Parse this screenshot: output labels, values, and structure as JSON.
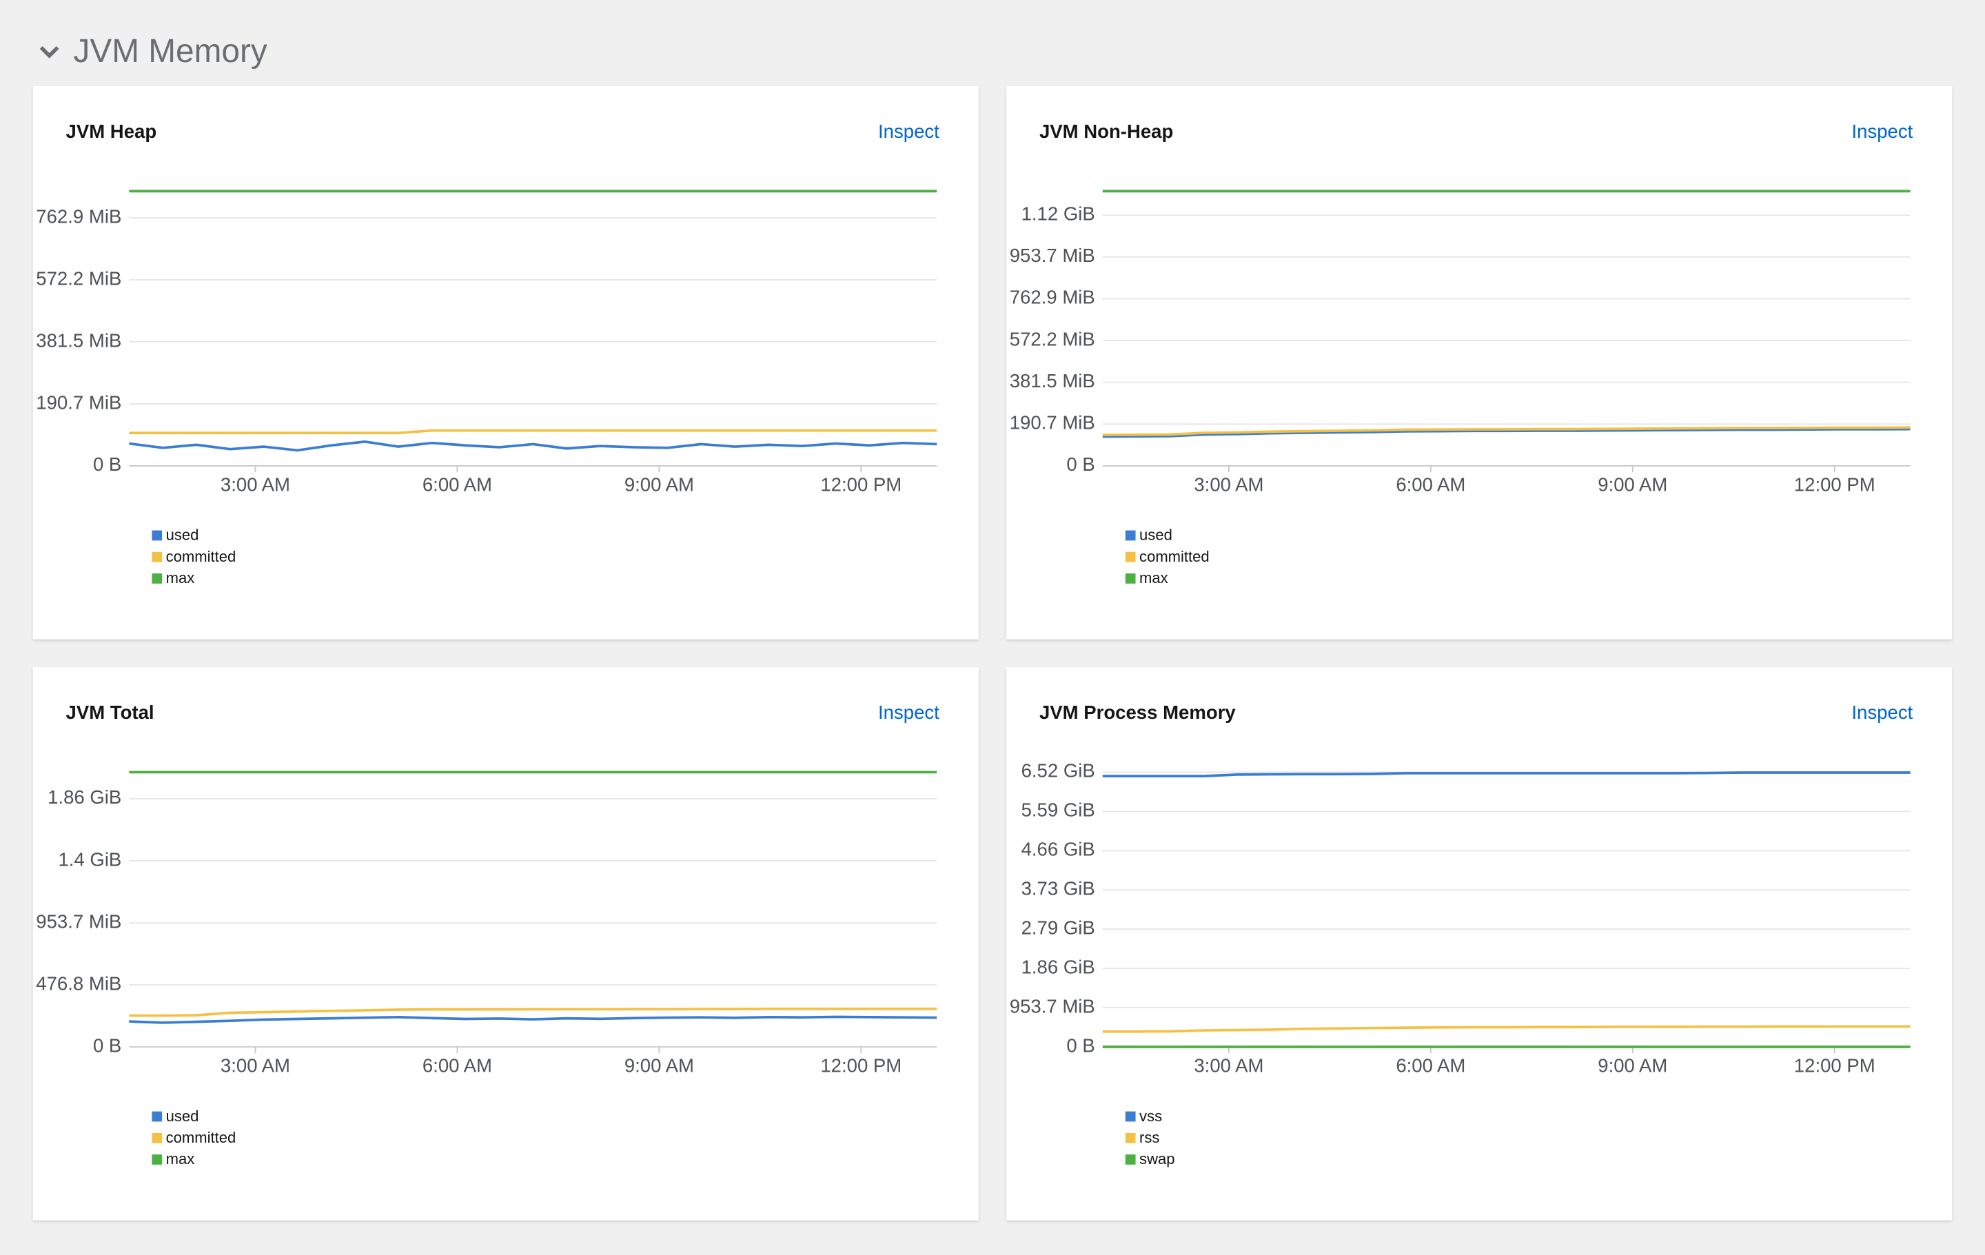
{
  "section_title": "JVM Memory",
  "chart_data": [
    {
      "type": "line",
      "title": "JVM Heap",
      "action": "Inspect",
      "grid": true,
      "legend": "bottom-left",
      "x": [
        1.125,
        1.625,
        2.125,
        2.625,
        3.125,
        3.625,
        4.125,
        4.625,
        5.125,
        5.625,
        6.125,
        6.625,
        7.125,
        7.625,
        8.125,
        8.625,
        9.125,
        9.625,
        10.125,
        10.625,
        11.125,
        11.625,
        12.125,
        12.625,
        13.125
      ],
      "xlim": [
        1.125,
        13.125
      ],
      "xticks": [
        {
          "value": 3,
          "label": "3:00 AM"
        },
        {
          "value": 6,
          "label": "6:00 AM"
        },
        {
          "value": 9,
          "label": "9:00 AM"
        },
        {
          "value": 12,
          "label": "12:00 PM"
        }
      ],
      "ylim": [
        0,
        886000000
      ],
      "yticks": [
        {
          "value": 0,
          "label": "0 B"
        },
        {
          "value": 200000000,
          "label": "190.7 MiB"
        },
        {
          "value": 400000000,
          "label": "381.5 MiB"
        },
        {
          "value": 600000000,
          "label": "572.2 MiB"
        },
        {
          "value": 800000000,
          "label": "762.9 MiB"
        }
      ],
      "series": [
        {
          "name": "used",
          "color": "#3b7dd1",
          "values": [
            72000000,
            58000000,
            68000000,
            54000000,
            62000000,
            50000000,
            66000000,
            78000000,
            62000000,
            74000000,
            66000000,
            60000000,
            70000000,
            56000000,
            64000000,
            60000000,
            58000000,
            70000000,
            62000000,
            68000000,
            64000000,
            72000000,
            66000000,
            74000000,
            70000000
          ]
        },
        {
          "name": "committed",
          "color": "#f4c145",
          "values": [
            106000000,
            106000000,
            106000000,
            106000000,
            106000000,
            106000000,
            106000000,
            106000000,
            106000000,
            114000000,
            114000000,
            114000000,
            114000000,
            114000000,
            114000000,
            114000000,
            114000000,
            114000000,
            114000000,
            114000000,
            114000000,
            114000000,
            114000000,
            114000000,
            114000000
          ]
        },
        {
          "name": "max",
          "color": "#4cb140",
          "values": [
            886000000,
            886000000,
            886000000,
            886000000,
            886000000,
            886000000,
            886000000,
            886000000,
            886000000,
            886000000,
            886000000,
            886000000,
            886000000,
            886000000,
            886000000,
            886000000,
            886000000,
            886000000,
            886000000,
            886000000,
            886000000,
            886000000,
            886000000,
            886000000,
            886000000
          ]
        }
      ]
    },
    {
      "type": "line",
      "title": "JVM Non-Heap",
      "action": "Inspect",
      "grid": true,
      "legend": "bottom-left",
      "x": [
        1.125,
        1.625,
        2.125,
        2.625,
        3.125,
        3.625,
        4.125,
        4.625,
        5.125,
        5.625,
        6.125,
        6.625,
        7.125,
        7.625,
        8.125,
        8.625,
        9.125,
        9.625,
        10.125,
        10.625,
        11.125,
        11.625,
        12.125,
        12.625,
        13.125
      ],
      "xlim": [
        1.125,
        13.125
      ],
      "xticks": [
        {
          "value": 3,
          "label": "3:00 AM"
        },
        {
          "value": 6,
          "label": "6:00 AM"
        },
        {
          "value": 9,
          "label": "9:00 AM"
        },
        {
          "value": 12,
          "label": "12:00 PM"
        }
      ],
      "ylim": [
        0,
        1315000000
      ],
      "yticks": [
        {
          "value": 0,
          "label": "0 B"
        },
        {
          "value": 200000000,
          "label": "190.7 MiB"
        },
        {
          "value": 400000000,
          "label": "381.5 MiB"
        },
        {
          "value": 600000000,
          "label": "572.2 MiB"
        },
        {
          "value": 800000000,
          "label": "762.9 MiB"
        },
        {
          "value": 1000000000,
          "label": "953.7 MiB"
        },
        {
          "value": 1200000000,
          "label": "1.12 GiB"
        }
      ],
      "series": [
        {
          "name": "used",
          "color": "#3b7dd1",
          "values": [
            140000000,
            141000000,
            142000000,
            150000000,
            152000000,
            156000000,
            158000000,
            160000000,
            162000000,
            165000000,
            166000000,
            167000000,
            167000000,
            168000000,
            168000000,
            169000000,
            170000000,
            171000000,
            172000000,
            173000000,
            173000000,
            174000000,
            175000000,
            175000000,
            176000000
          ]
        },
        {
          "name": "committed",
          "color": "#f4c145",
          "values": [
            148000000,
            149000000,
            150000000,
            158000000,
            160000000,
            164000000,
            166000000,
            168000000,
            170000000,
            173000000,
            174000000,
            175000000,
            175000000,
            176000000,
            176000000,
            177000000,
            178000000,
            179000000,
            180000000,
            181000000,
            181000000,
            182000000,
            183000000,
            183000000,
            184000000
          ]
        },
        {
          "name": "max",
          "color": "#4cb140",
          "values": [
            1315000000,
            1315000000,
            1315000000,
            1315000000,
            1315000000,
            1315000000,
            1315000000,
            1315000000,
            1315000000,
            1315000000,
            1315000000,
            1315000000,
            1315000000,
            1315000000,
            1315000000,
            1315000000,
            1315000000,
            1315000000,
            1315000000,
            1315000000,
            1315000000,
            1315000000,
            1315000000,
            1315000000,
            1315000000
          ]
        }
      ]
    },
    {
      "type": "line",
      "title": "JVM Total",
      "action": "Inspect",
      "grid": true,
      "legend": "bottom-left",
      "x": [
        1.125,
        1.625,
        2.125,
        2.625,
        3.125,
        3.625,
        4.125,
        4.625,
        5.125,
        5.625,
        6.125,
        6.625,
        7.125,
        7.625,
        8.125,
        8.625,
        9.125,
        9.625,
        10.125,
        10.625,
        11.125,
        11.625,
        12.125,
        12.625,
        13.125
      ],
      "xlim": [
        1.125,
        13.125
      ],
      "xticks": [
        {
          "value": 3,
          "label": "3:00 AM"
        },
        {
          "value": 6,
          "label": "6:00 AM"
        },
        {
          "value": 9,
          "label": "9:00 AM"
        },
        {
          "value": 12,
          "label": "12:00 PM"
        }
      ],
      "ylim": [
        0,
        2214000000
      ],
      "yticks": [
        {
          "value": 0,
          "label": "0 B"
        },
        {
          "value": 500000000,
          "label": "476.8 MiB"
        },
        {
          "value": 1000000000,
          "label": "953.7 MiB"
        },
        {
          "value": 1500000000,
          "label": "1.4 GiB"
        },
        {
          "value": 2000000000,
          "label": "1.86 GiB"
        }
      ],
      "series": [
        {
          "name": "used",
          "color": "#3b7dd1",
          "values": [
            205000000,
            195000000,
            202000000,
            210000000,
            220000000,
            225000000,
            230000000,
            235000000,
            240000000,
            232000000,
            225000000,
            228000000,
            222000000,
            230000000,
            226000000,
            232000000,
            236000000,
            238000000,
            234000000,
            240000000,
            238000000,
            242000000,
            240000000,
            238000000,
            236000000
          ]
        },
        {
          "name": "committed",
          "color": "#f4c145",
          "values": [
            252000000,
            252000000,
            255000000,
            275000000,
            280000000,
            285000000,
            290000000,
            295000000,
            300000000,
            302000000,
            302000000,
            302000000,
            303000000,
            303000000,
            303000000,
            304000000,
            304000000,
            305000000,
            305000000,
            306000000,
            306000000,
            306000000,
            306000000,
            306000000,
            306000000
          ]
        },
        {
          "name": "max",
          "color": "#4cb140",
          "values": [
            2214000000,
            2214000000,
            2214000000,
            2214000000,
            2214000000,
            2214000000,
            2214000000,
            2214000000,
            2214000000,
            2214000000,
            2214000000,
            2214000000,
            2214000000,
            2214000000,
            2214000000,
            2214000000,
            2214000000,
            2214000000,
            2214000000,
            2214000000,
            2214000000,
            2214000000,
            2214000000,
            2214000000,
            2214000000
          ]
        }
      ]
    },
    {
      "type": "line",
      "title": "JVM Process Memory",
      "action": "Inspect",
      "grid": true,
      "legend": "bottom-left",
      "x": [
        1.125,
        1.625,
        2.125,
        2.625,
        3.125,
        3.625,
        4.125,
        4.625,
        5.125,
        5.625,
        6.125,
        6.625,
        7.125,
        7.625,
        8.125,
        8.625,
        9.125,
        9.625,
        10.125,
        10.625,
        11.125,
        11.625,
        12.125,
        12.625,
        13.125
      ],
      "xlim": [
        1.125,
        13.125
      ],
      "xticks": [
        {
          "value": 3,
          "label": "3:00 AM"
        },
        {
          "value": 6,
          "label": "6:00 AM"
        },
        {
          "value": 9,
          "label": "9:00 AM"
        },
        {
          "value": 12,
          "label": "12:00 PM"
        }
      ],
      "ylim": [
        0,
        7000000000
      ],
      "yticks": [
        {
          "value": 0,
          "label": "0 B"
        },
        {
          "value": 1000000000,
          "label": "953.7 MiB"
        },
        {
          "value": 2000000000,
          "label": "1.86 GiB"
        },
        {
          "value": 3000000000,
          "label": "2.79 GiB"
        },
        {
          "value": 4000000000,
          "label": "3.73 GiB"
        },
        {
          "value": 5000000000,
          "label": "4.66 GiB"
        },
        {
          "value": 6000000000,
          "label": "5.59 GiB"
        },
        {
          "value": 7000000000,
          "label": "6.52 GiB"
        }
      ],
      "series": [
        {
          "name": "vss",
          "color": "#3b7dd1",
          "values": [
            6900000000,
            6900000000,
            6900000000,
            6900000000,
            6940000000,
            6945000000,
            6950000000,
            6950000000,
            6955000000,
            6975000000,
            6975000000,
            6975000000,
            6975000000,
            6975000000,
            6975000000,
            6975000000,
            6975000000,
            6975000000,
            6980000000,
            6990000000,
            6990000000,
            6990000000,
            6990000000,
            6990000000,
            6990000000
          ]
        },
        {
          "name": "rss",
          "color": "#f4c145",
          "values": [
            390000000,
            390000000,
            395000000,
            420000000,
            430000000,
            440000000,
            460000000,
            470000000,
            480000000,
            490000000,
            495000000,
            500000000,
            500000000,
            505000000,
            505000000,
            510000000,
            510000000,
            512000000,
            515000000,
            515000000,
            518000000,
            518000000,
            520000000,
            520000000,
            520000000
          ]
        },
        {
          "name": "swap",
          "color": "#4cb140",
          "values": [
            0,
            0,
            0,
            0,
            0,
            0,
            0,
            0,
            0,
            0,
            0,
            0,
            0,
            0,
            0,
            0,
            0,
            0,
            0,
            0,
            0,
            0,
            0,
            0,
            0
          ]
        }
      ]
    }
  ]
}
